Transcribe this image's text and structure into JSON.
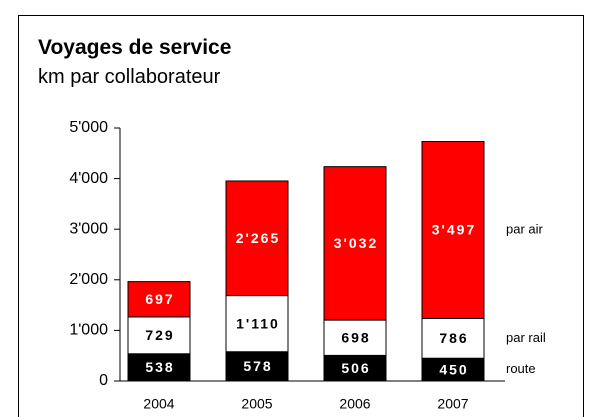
{
  "chart_data": {
    "type": "stacked_bar",
    "title": "Voyages de service",
    "subtitle": "km par collaborateur",
    "categories": [
      "2004",
      "2005",
      "2006",
      "2007"
    ],
    "series": [
      {
        "name": "route",
        "color": "#000000",
        "label_color": "#ffffff",
        "values": [
          538,
          578,
          506,
          450
        ],
        "value_labels": [
          "538",
          "578",
          "506",
          "450"
        ]
      },
      {
        "name": "par rail",
        "color": "#ffffff",
        "label_color": "#000000",
        "values": [
          729,
          1110,
          698,
          786
        ],
        "value_labels": [
          "729",
          "1'110",
          "698",
          "786"
        ]
      },
      {
        "name": "par air",
        "color": "#ff0000",
        "label_color": "#ffffff",
        "values": [
          697,
          2265,
          3032,
          3497
        ],
        "value_labels": [
          "697",
          "2'265",
          "3'032",
          "3'497"
        ]
      }
    ],
    "ylim": [
      0,
      5000
    ],
    "yticks": [
      0,
      {
        "value": 1000,
        "label": "1'000"
      },
      {
        "value": 2000,
        "label": "2'000"
      },
      {
        "value": 3000,
        "label": "3'000"
      },
      {
        "value": 4000,
        "label": "4'000"
      },
      {
        "value": 5000,
        "label": "5'000"
      }
    ]
  }
}
